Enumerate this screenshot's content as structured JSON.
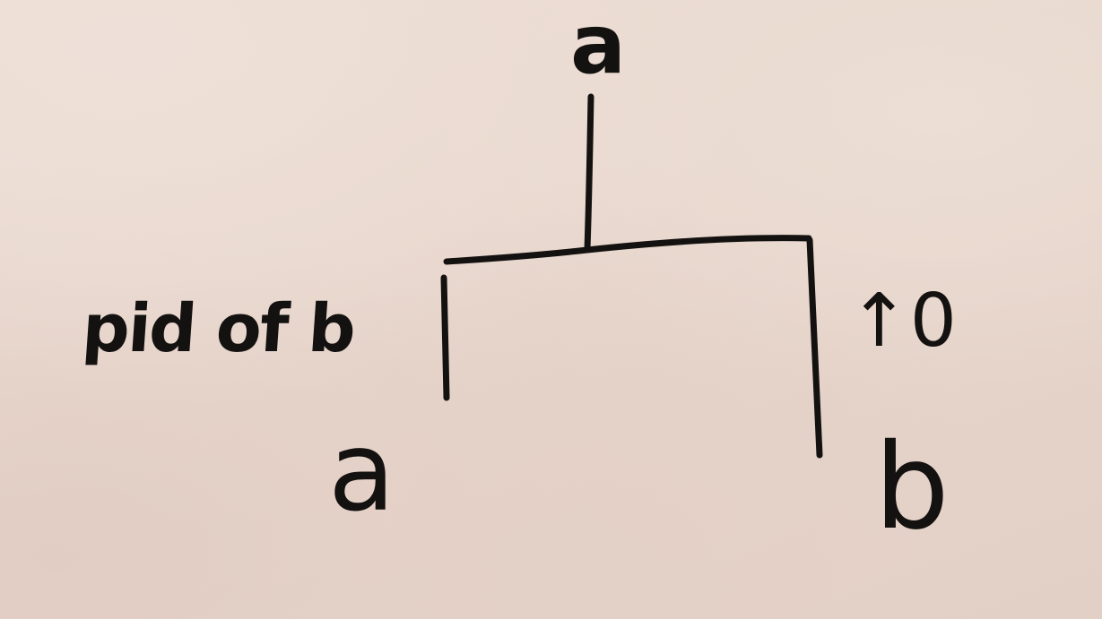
{
  "diagram": {
    "root_label": "a",
    "left_leaf_label": "a",
    "right_leaf_label": "b",
    "left_edge_label": "pid of b",
    "right_edge_label": "↑0"
  }
}
